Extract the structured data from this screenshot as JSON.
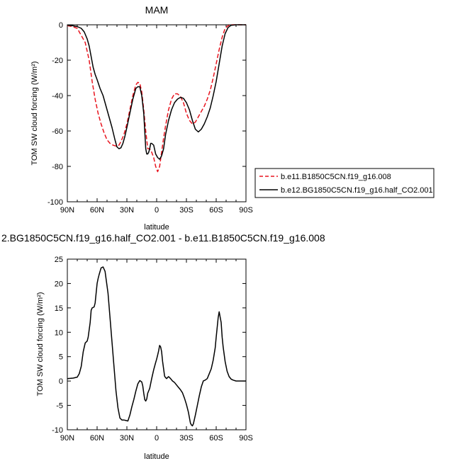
{
  "chart_data": [
    {
      "type": "line",
      "title": "MAM",
      "xlabel": "latitude",
      "ylabel": "TOM SW cloud forcing (W/m²)",
      "xlim": [
        90,
        -90
      ],
      "ylim": [
        -100,
        0
      ],
      "xticks": [
        90,
        60,
        30,
        0,
        -30,
        -60,
        -90
      ],
      "xtick_labels": [
        "90N",
        "60N",
        "30N",
        "0",
        "30S",
        "60S",
        "90S"
      ],
      "yticks": [
        0,
        -20,
        -40,
        -60,
        -80,
        -100
      ],
      "ytick_labels": [
        "0",
        "-20",
        "-40",
        "-60",
        "-80",
        "-100"
      ],
      "legend_position": "right",
      "series": [
        {
          "name": "b.e11.B1850C5CN.f19_g16.008",
          "color": "#e8141e",
          "dash": "dashed",
          "x": [
            90,
            85,
            80,
            76,
            72,
            68,
            65,
            62,
            59,
            56,
            53,
            50,
            47,
            44,
            41,
            38,
            36,
            33,
            30,
            27,
            24,
            21,
            19,
            17,
            15,
            13,
            11,
            9,
            7,
            5,
            3,
            1,
            -1,
            -3,
            -5,
            -7,
            -9,
            -12,
            -15,
            -18,
            -21,
            -24,
            -27,
            -30,
            -33,
            -36,
            -39,
            -42,
            -45,
            -48,
            -51,
            -54,
            -57,
            -60,
            -63,
            -66,
            -69,
            -72,
            -75,
            -80,
            -85,
            -90
          ],
          "y": [
            -0.5,
            -1,
            -2,
            -6,
            -10,
            -20,
            -32,
            -42,
            -50,
            -56,
            -61,
            -65,
            -67,
            -68,
            -68.5,
            -68,
            -66,
            -62,
            -56,
            -48,
            -40,
            -34,
            -32.5,
            -33,
            -38,
            -48,
            -60,
            -70,
            -70,
            -72,
            -75,
            -80,
            -83,
            -80,
            -72,
            -64,
            -57,
            -48,
            -42,
            -39,
            -39,
            -40.5,
            -44,
            -50,
            -54,
            -56,
            -55,
            -52,
            -49,
            -46,
            -42,
            -37,
            -30,
            -22,
            -14,
            -7,
            -2,
            -0.5,
            0,
            0,
            0,
            0
          ]
        },
        {
          "name": "b.e12.BG1850C5CN.f19_g16.half_CO2.001",
          "color": "#000000",
          "dash": "solid",
          "x": [
            90,
            85,
            80,
            76,
            73,
            70,
            68,
            66,
            64,
            62,
            60,
            57,
            54,
            51,
            48,
            45,
            42,
            40,
            38,
            36,
            34,
            32,
            30,
            27,
            24,
            21,
            19,
            17,
            15,
            13,
            12,
            11,
            10,
            9,
            8,
            7,
            6,
            5,
            3,
            1,
            -1,
            -3,
            -5,
            -7,
            -9,
            -12,
            -15,
            -18,
            -21,
            -24,
            -27,
            -30,
            -33,
            -36,
            -39,
            -42,
            -45,
            -48,
            -51,
            -54,
            -57,
            -60,
            -63,
            -66,
            -69,
            -72,
            -75,
            -80,
            -85,
            -90
          ],
          "y": [
            -0.2,
            -0.5,
            -1,
            -2,
            -4,
            -8,
            -12,
            -18,
            -24,
            -28,
            -31,
            -36,
            -40,
            -46,
            -52,
            -58,
            -65,
            -69,
            -70,
            -69.5,
            -67,
            -63,
            -58,
            -50,
            -42,
            -36,
            -35,
            -35,
            -40,
            -50,
            -60,
            -70,
            -73,
            -73,
            -72,
            -70,
            -67,
            -67,
            -68,
            -73,
            -75,
            -76,
            -74,
            -70,
            -62,
            -54,
            -48,
            -44,
            -42,
            -41,
            -41.5,
            -44,
            -48,
            -54,
            -59,
            -60.5,
            -59,
            -56,
            -52,
            -47,
            -40,
            -32,
            -22,
            -12,
            -5,
            -1.5,
            -0.3,
            0,
            0,
            0
          ]
        }
      ]
    },
    {
      "type": "line",
      "title": "2.BG1850C5CN.f19_g16.half_CO2.001 - b.e11.B1850C5CN.f19_g16.008",
      "xlabel": "latitude",
      "ylabel": "TOM SW cloud forcing (W/m²)",
      "xlim": [
        90,
        -90
      ],
      "ylim": [
        -10,
        25
      ],
      "xticks": [
        90,
        60,
        30,
        0,
        -30,
        -60,
        -90
      ],
      "xtick_labels": [
        "90N",
        "60N",
        "30N",
        "0",
        "30S",
        "60S",
        "90S"
      ],
      "yticks": [
        25,
        20,
        15,
        10,
        5,
        0,
        -5,
        -10
      ],
      "ytick_labels": [
        "25",
        "20",
        "15",
        "10",
        "5",
        "0",
        "-5",
        "-10"
      ],
      "series": [
        {
          "color": "#000000",
          "dash": "solid",
          "x": [
            90,
            84,
            80,
            78,
            76,
            74,
            72,
            70,
            69,
            67,
            66,
            65,
            63,
            62,
            61,
            60,
            59,
            58,
            56,
            54,
            52,
            51,
            49,
            47,
            45,
            43,
            41,
            39,
            37,
            35,
            33,
            31,
            29,
            27,
            25,
            23,
            21,
            19,
            17,
            15,
            14,
            13,
            12,
            11,
            10,
            9,
            7,
            5,
            3,
            1,
            0,
            -1,
            -2,
            -3,
            -4,
            -5,
            -6,
            -7,
            -8,
            -9,
            -10,
            -11,
            -12,
            -14,
            -16,
            -18,
            -20,
            -22,
            -24,
            -26,
            -28,
            -30,
            -32,
            -33,
            -34,
            -35,
            -36,
            -37,
            -39,
            -41,
            -43,
            -45,
            -47,
            -49,
            -51,
            -53,
            -55,
            -57,
            -59,
            -60,
            -61,
            -62,
            -63,
            -65,
            -66,
            -67,
            -69,
            -71,
            -73,
            -75,
            -77,
            -80,
            -84,
            -90
          ],
          "y": [
            0.5,
            0.6,
            0.8,
            1.5,
            3,
            6,
            7.8,
            8.2,
            9,
            12,
            14.5,
            15,
            15.2,
            16,
            18,
            20,
            21,
            21.8,
            23.2,
            23.4,
            22.5,
            21,
            18,
            13,
            8,
            3,
            -2,
            -5.5,
            -7.6,
            -8,
            -8,
            -8.1,
            -8.2,
            -7,
            -5.3,
            -3.8,
            -2.1,
            -0.6,
            0.1,
            -0.2,
            -1,
            -2.5,
            -3.8,
            -4.1,
            -3.7,
            -2.5,
            -1.5,
            0.5,
            2.3,
            3.8,
            4.5,
            5.3,
            6.2,
            7.3,
            7,
            6,
            4,
            2.5,
            1,
            0.7,
            0.5,
            0.7,
            0.9,
            0.5,
            0,
            -0.3,
            -0.8,
            -1.3,
            -1.8,
            -2.4,
            -3.5,
            -4.8,
            -6.4,
            -7.5,
            -8.6,
            -9,
            -9.2,
            -8.8,
            -7,
            -5,
            -3,
            -1.2,
            0,
            0.2,
            0.5,
            1.5,
            2.5,
            4.3,
            6.8,
            9,
            11,
            13,
            14.2,
            12,
            9,
            7,
            4,
            2,
            0.9,
            0.4,
            0.2,
            0,
            0,
            0
          ]
        }
      ]
    }
  ]
}
